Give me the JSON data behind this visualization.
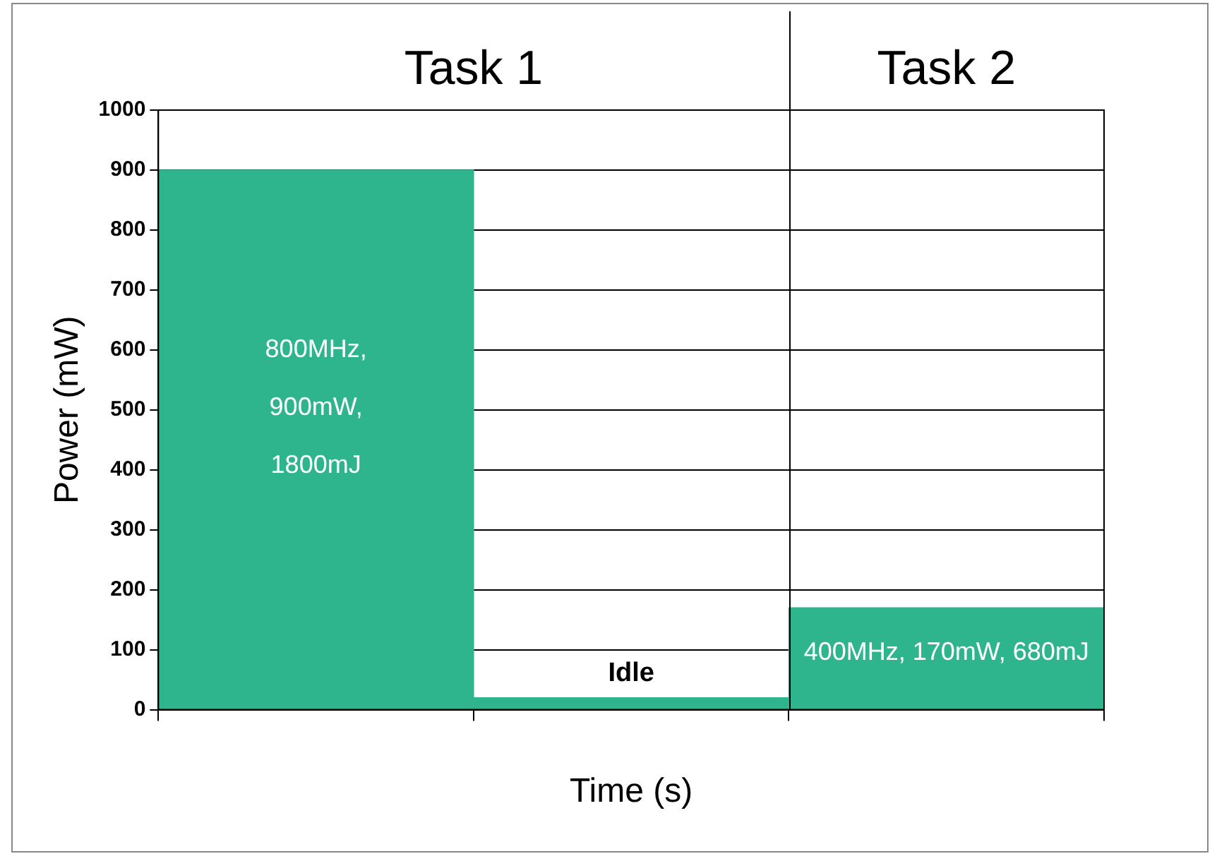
{
  "chart_data": {
    "type": "bar",
    "xlabel": "Time (s)",
    "ylabel": "Power (mW)",
    "categories": [
      null,
      null,
      null
    ],
    "values": [
      900,
      20,
      170
    ],
    "color": "#2fb58e",
    "ylim": [
      0,
      1000
    ],
    "yticks": [
      0,
      100,
      200,
      300,
      400,
      500,
      600,
      700,
      800,
      900,
      1000
    ],
    "grid": "y",
    "legend": false,
    "annotations": [
      "Task 1",
      "Task 2",
      "800MHz, 900mW, 1800mJ",
      "Idle",
      "400MHz, 170mW, 680mJ"
    ]
  }
}
